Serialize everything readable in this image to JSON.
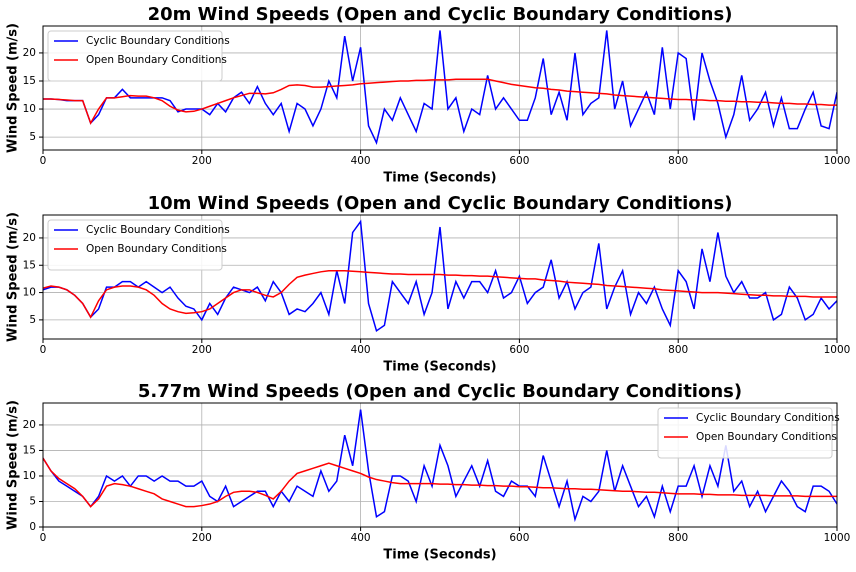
{
  "chart_data": [
    {
      "type": "line",
      "title": "20m Wind Speeds (Open and Cyclic Boundary Conditions)",
      "x_label": "Time (Seconds)",
      "y_label": "Wind Speed (m/s)",
      "xlim": [
        0,
        1000
      ],
      "xticks": [
        0,
        200,
        400,
        600,
        800,
        1000
      ],
      "ylim": [
        2.7,
        24.8
      ],
      "yticks": [
        5,
        10,
        15,
        20
      ],
      "grid": true,
      "legend": "upper left",
      "x": [
        0,
        10,
        20,
        30,
        40,
        50,
        60,
        70,
        80,
        90,
        100,
        110,
        120,
        130,
        140,
        150,
        160,
        170,
        180,
        190,
        200,
        210,
        220,
        230,
        240,
        250,
        260,
        270,
        280,
        290,
        300,
        310,
        320,
        330,
        340,
        350,
        360,
        370,
        380,
        390,
        400,
        410,
        420,
        430,
        440,
        450,
        460,
        470,
        480,
        490,
        500,
        510,
        520,
        530,
        540,
        550,
        560,
        570,
        580,
        590,
        600,
        610,
        620,
        630,
        640,
        650,
        660,
        670,
        680,
        690,
        700,
        710,
        720,
        730,
        740,
        750,
        760,
        770,
        780,
        790,
        800,
        810,
        820,
        830,
        840,
        850,
        860,
        870,
        880,
        890,
        900,
        910,
        920,
        930,
        940,
        950,
        960,
        970,
        980,
        990,
        1000
      ],
      "series": [
        {
          "name": "Cyclic Boundary Conditions",
          "color": "#0000ff",
          "values": [
            11.8,
            11.8,
            11.7,
            11.5,
            11.5,
            11.5,
            7.5,
            9,
            12,
            12,
            13.5,
            12,
            12,
            12,
            12,
            12,
            11.5,
            9.5,
            10,
            10,
            10,
            9,
            11,
            9.5,
            12,
            13,
            11,
            14,
            11,
            9,
            11,
            6,
            11,
            10,
            7,
            10,
            15,
            12,
            23,
            15,
            21,
            7,
            4,
            10,
            8,
            12,
            9,
            6,
            11,
            10,
            24,
            10,
            12,
            6,
            10,
            9,
            16,
            10,
            12,
            10,
            8,
            8,
            12,
            19,
            9,
            13,
            8,
            20,
            9,
            11,
            12,
            24,
            10,
            15,
            7,
            10,
            13,
            9,
            21,
            10,
            20,
            19,
            8,
            20,
            15,
            11,
            5,
            9,
            16,
            8,
            10,
            13,
            7,
            12,
            6.5,
            6.5,
            10,
            13,
            7,
            6.5,
            13
          ]
        },
        {
          "name": "Open Boundary Conditions",
          "color": "#ff0000",
          "values": [
            11.8,
            11.8,
            11.7,
            11.6,
            11.5,
            11.5,
            7.5,
            10,
            12,
            12,
            12.2,
            12.4,
            12.3,
            12.3,
            12.0,
            11.5,
            10.5,
            9.8,
            9.5,
            9.6,
            10,
            10.5,
            11,
            11.5,
            12,
            12.4,
            12.8,
            12.8,
            12.7,
            12.9,
            13.5,
            14.2,
            14.3,
            14.2,
            13.9,
            13.9,
            14,
            14.1,
            14.2,
            14.3,
            14.5,
            14.6,
            14.7,
            14.8,
            14.9,
            15,
            15,
            15.1,
            15.1,
            15.2,
            15.2,
            15.2,
            15.3,
            15.3,
            15.3,
            15.3,
            15.3,
            15,
            14.7,
            14.4,
            14.2,
            14,
            13.8,
            13.7,
            13.5,
            13.4,
            13.2,
            13.1,
            13,
            12.9,
            12.8,
            12.7,
            12.5,
            12.4,
            12.3,
            12.2,
            12.1,
            12,
            11.9,
            11.8,
            11.7,
            11.7,
            11.6,
            11.6,
            11.5,
            11.5,
            11.4,
            11.4,
            11.3,
            11.3,
            11.2,
            11.2,
            11.1,
            11,
            11,
            10.9,
            10.9,
            10.8,
            10.8,
            10.7,
            10.7
          ]
        }
      ]
    },
    {
      "type": "line",
      "title": "10m Wind Speeds (Open and Cyclic Boundary Conditions)",
      "x_label": "Time (Seconds)",
      "y_label": "Wind Speed (m/s)",
      "xlim": [
        0,
        1000
      ],
      "xticks": [
        0,
        200,
        400,
        600,
        800,
        1000
      ],
      "ylim": [
        1.5,
        24.2
      ],
      "yticks": [
        5,
        10,
        15,
        20
      ],
      "grid": true,
      "legend": "upper left",
      "x": [
        0,
        10,
        20,
        30,
        40,
        50,
        60,
        70,
        80,
        90,
        100,
        110,
        120,
        130,
        140,
        150,
        160,
        170,
        180,
        190,
        200,
        210,
        220,
        230,
        240,
        250,
        260,
        270,
        280,
        290,
        300,
        310,
        320,
        330,
        340,
        350,
        360,
        370,
        380,
        390,
        400,
        410,
        420,
        430,
        440,
        450,
        460,
        470,
        480,
        490,
        500,
        510,
        520,
        530,
        540,
        550,
        560,
        570,
        580,
        590,
        600,
        610,
        620,
        630,
        640,
        650,
        660,
        670,
        680,
        690,
        700,
        710,
        720,
        730,
        740,
        750,
        760,
        770,
        780,
        790,
        800,
        810,
        820,
        830,
        840,
        850,
        860,
        870,
        880,
        890,
        900,
        910,
        920,
        930,
        940,
        950,
        960,
        970,
        980,
        990,
        1000
      ],
      "series": [
        {
          "name": "Cyclic Boundary Conditions",
          "color": "#0000ff",
          "values": [
            10.5,
            11,
            11,
            10.5,
            9.5,
            8,
            5.5,
            7,
            11,
            11,
            12,
            12,
            11,
            12,
            11,
            10,
            11,
            9,
            7.5,
            7,
            5,
            8,
            6,
            9,
            11,
            10.5,
            10,
            11,
            8.5,
            12,
            10,
            6,
            7,
            6.5,
            8,
            10,
            6,
            14,
            8,
            21,
            23,
            8,
            3,
            4,
            12,
            10,
            8,
            12,
            6,
            10,
            22,
            7,
            12,
            9,
            12,
            12,
            10,
            14,
            9,
            10,
            13,
            8,
            10,
            11,
            16,
            9,
            12,
            7,
            10,
            11,
            19,
            7,
            11,
            14,
            6,
            10,
            8,
            11,
            7,
            4,
            14,
            12,
            7,
            18,
            12,
            21,
            13,
            10,
            12,
            9,
            9,
            10,
            5,
            6,
            11,
            9,
            5,
            6,
            9,
            7,
            8.5
          ]
        },
        {
          "name": "Open Boundary Conditions",
          "color": "#ff0000",
          "values": [
            10.8,
            11.2,
            11,
            10.5,
            9.5,
            8,
            5.5,
            8.5,
            10.5,
            11,
            11.2,
            11.2,
            11,
            10.5,
            9.5,
            8,
            7,
            6.5,
            6.2,
            6.3,
            6.5,
            7,
            8,
            9,
            10,
            10.5,
            10.5,
            10,
            9.5,
            9.2,
            10,
            11.5,
            12.8,
            13.2,
            13.5,
            13.8,
            14,
            14,
            14,
            13.9,
            13.8,
            13.7,
            13.6,
            13.5,
            13.4,
            13.4,
            13.3,
            13.3,
            13.3,
            13.3,
            13.3,
            13.2,
            13.2,
            13.1,
            13.1,
            13,
            13,
            12.9,
            12.8,
            12.7,
            12.6,
            12.5,
            12.5,
            12.3,
            12.2,
            12.1,
            11.9,
            11.8,
            11.7,
            11.6,
            11.5,
            11.3,
            11.2,
            11.1,
            11,
            10.9,
            10.8,
            10.7,
            10.5,
            10.4,
            10.3,
            10.2,
            10.1,
            10,
            10,
            10,
            9.9,
            9.8,
            9.7,
            9.6,
            9.5,
            9.5,
            9.4,
            9.4,
            9.3,
            9.3,
            9.3,
            9.2,
            9.2,
            9.2,
            9.2
          ]
        }
      ]
    },
    {
      "type": "line",
      "title": "5.77m Wind Speeds (Open and Cyclic Boundary Conditions)",
      "x_label": "Time (Seconds)",
      "y_label": "Wind Speed (m/s)",
      "xlim": [
        0,
        1000
      ],
      "xticks": [
        0,
        200,
        400,
        600,
        800,
        1000
      ],
      "ylim": [
        0,
        24.3
      ],
      "yticks": [
        0,
        5,
        10,
        15,
        20
      ],
      "grid": true,
      "legend": "upper right",
      "x": [
        0,
        10,
        20,
        30,
        40,
        50,
        60,
        70,
        80,
        90,
        100,
        110,
        120,
        130,
        140,
        150,
        160,
        170,
        180,
        190,
        200,
        210,
        220,
        230,
        240,
        250,
        260,
        270,
        280,
        290,
        300,
        310,
        320,
        330,
        340,
        350,
        360,
        370,
        380,
        390,
        400,
        410,
        420,
        430,
        440,
        450,
        460,
        470,
        480,
        490,
        500,
        510,
        520,
        530,
        540,
        550,
        560,
        570,
        580,
        590,
        600,
        610,
        620,
        630,
        640,
        650,
        660,
        670,
        680,
        690,
        700,
        710,
        720,
        730,
        740,
        750,
        760,
        770,
        780,
        790,
        800,
        810,
        820,
        830,
        840,
        850,
        860,
        870,
        880,
        890,
        900,
        910,
        920,
        930,
        940,
        950,
        960,
        970,
        980,
        990,
        1000
      ],
      "series": [
        {
          "name": "Cyclic Boundary Conditions",
          "color": "#0000ff",
          "values": [
            13.5,
            11,
            9,
            8,
            7,
            6,
            4,
            6,
            10,
            9,
            10,
            8,
            10,
            10,
            9,
            10,
            9,
            9,
            8,
            8,
            9,
            6,
            5,
            8,
            4,
            5,
            6,
            7,
            7,
            4,
            7,
            5,
            8,
            7,
            6,
            11,
            7,
            9,
            18,
            12,
            23,
            11,
            2,
            3,
            10,
            10,
            9,
            5,
            12,
            8,
            16,
            12,
            6,
            9,
            12,
            8,
            13,
            7,
            6,
            9,
            8,
            8,
            6,
            14,
            9,
            4,
            9,
            1.5,
            6,
            5,
            7,
            15,
            7,
            12,
            8,
            4,
            6,
            2,
            8,
            3,
            8,
            8,
            12,
            6,
            12,
            8,
            16,
            7,
            9,
            4,
            7,
            3,
            6,
            9,
            7,
            4,
            3,
            8,
            8,
            7,
            4.5
          ]
        },
        {
          "name": "Open Boundary Conditions",
          "color": "#ff0000",
          "values": [
            13.5,
            11,
            9.5,
            8.5,
            7.5,
            6,
            4,
            5.5,
            8,
            8.5,
            8.3,
            8,
            7.5,
            7,
            6.5,
            5.5,
            5,
            4.5,
            4,
            4,
            4.2,
            4.5,
            5,
            6,
            6.8,
            7,
            7,
            6.8,
            6.2,
            5.5,
            7,
            9,
            10.5,
            11,
            11.5,
            12,
            12.5,
            12,
            11.5,
            11,
            10.5,
            9.8,
            9.3,
            9,
            8.7,
            8.5,
            8.5,
            8.5,
            8.5,
            8.5,
            8.4,
            8.4,
            8.3,
            8.3,
            8.2,
            8.2,
            8.1,
            8.1,
            8,
            8,
            7.9,
            7.9,
            7.8,
            7.7,
            7.7,
            7.6,
            7.5,
            7.5,
            7.4,
            7.4,
            7.3,
            7.2,
            7.1,
            7,
            7,
            6.9,
            6.8,
            6.8,
            6.7,
            6.6,
            6.5,
            6.5,
            6.5,
            6.4,
            6.4,
            6.3,
            6.3,
            6.3,
            6.2,
            6.2,
            6.2,
            6.2,
            6.1,
            6.1,
            6.1,
            6.1,
            6,
            6,
            6,
            6,
            6
          ]
        }
      ]
    }
  ]
}
